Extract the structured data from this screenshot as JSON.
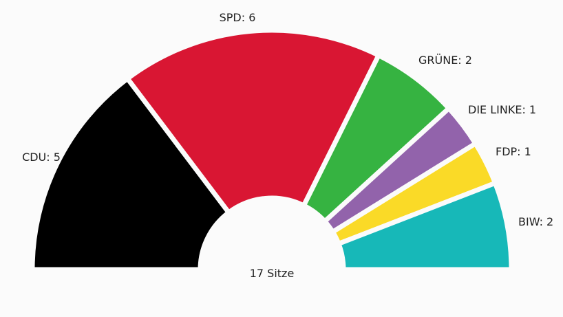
{
  "chart_data": {
    "type": "pie",
    "shape": "semicircle",
    "total_label": "17 Sitze",
    "categories": [
      "CDU",
      "SPD",
      "GRÜNE",
      "DIE LINKE",
      "FDP",
      "BIW"
    ],
    "values": [
      5,
      6,
      2,
      1,
      1,
      2
    ],
    "colors": [
      "#000000",
      "#d91633",
      "#36b341",
      "#9263ab",
      "#fada27",
      "#17b8b8"
    ],
    "labels": [
      "CDU: 5",
      "SPD: 6",
      "GRÜNE: 2",
      "DIE LINKE: 1",
      "FDP: 1",
      "BIW: 2"
    ]
  }
}
